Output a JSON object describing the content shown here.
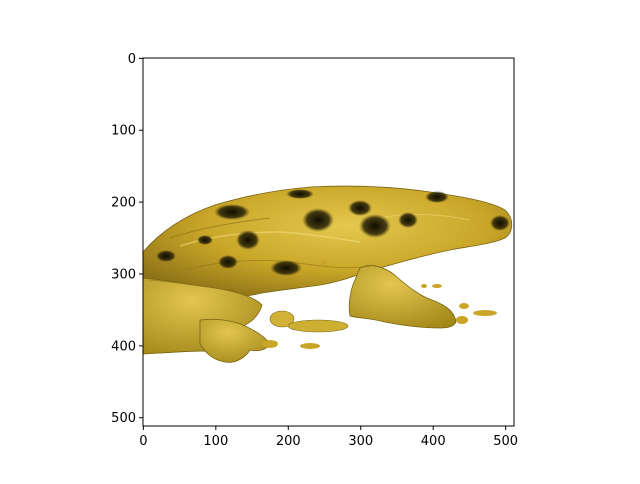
{
  "chart_data": {
    "type": "image",
    "title": "",
    "xlabel": "",
    "ylabel": "",
    "xlim": [
      0,
      511
    ],
    "ylim": [
      511,
      0
    ],
    "y_inverted": true,
    "x_ticks": [
      0,
      100,
      200,
      300,
      400,
      500
    ],
    "y_ticks": [
      0,
      100,
      200,
      300,
      400,
      500
    ],
    "x_tick_labels": [
      "0",
      "100",
      "200",
      "300",
      "400",
      "500"
    ],
    "y_tick_labels": [
      "0",
      "100",
      "200",
      "300",
      "400",
      "500"
    ],
    "grid": false,
    "legend": "none",
    "content": "3D volume-rendered yellow-gold object with dark spots",
    "colors": {
      "base": "#c9a628",
      "highlight": "#e6cc55",
      "shadow": "#6e5a12",
      "spots": "#111100"
    }
  }
}
